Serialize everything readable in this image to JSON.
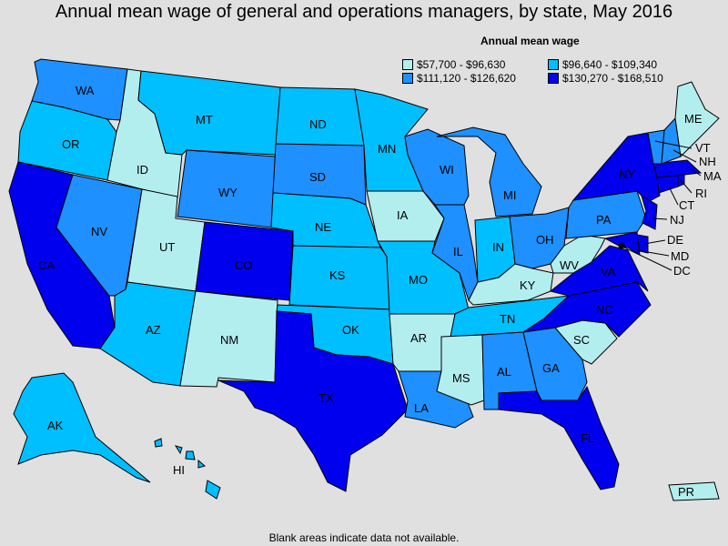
{
  "title": "Annual mean wage of general and operations managers, by state, May 2016",
  "legend": {
    "title": "Annual mean wage",
    "items": [
      {
        "label": "$57,700 - $96,630",
        "color": "#b3eeee"
      },
      {
        "label": "$96,640 - $109,340",
        "color": "#00bfff"
      },
      {
        "label": "$111,120 - $126,620",
        "color": "#1e90ff"
      },
      {
        "label": "$130,270 - $168,510",
        "color": "#0000ee"
      }
    ]
  },
  "footer": "Blank areas indicate data not available.",
  "states": [
    {
      "abbr": "WA",
      "tier": 2
    },
    {
      "abbr": "OR",
      "tier": 1
    },
    {
      "abbr": "CA",
      "tier": 3
    },
    {
      "abbr": "ID",
      "tier": 0
    },
    {
      "abbr": "NV",
      "tier": 2
    },
    {
      "abbr": "UT",
      "tier": 0
    },
    {
      "abbr": "AZ",
      "tier": 1
    },
    {
      "abbr": "MT",
      "tier": 1
    },
    {
      "abbr": "WY",
      "tier": 2
    },
    {
      "abbr": "CO",
      "tier": 3
    },
    {
      "abbr": "NM",
      "tier": 0
    },
    {
      "abbr": "ND",
      "tier": 1
    },
    {
      "abbr": "SD",
      "tier": 2
    },
    {
      "abbr": "NE",
      "tier": 1
    },
    {
      "abbr": "KS",
      "tier": 1
    },
    {
      "abbr": "OK",
      "tier": 1
    },
    {
      "abbr": "TX",
      "tier": 3
    },
    {
      "abbr": "MN",
      "tier": 1
    },
    {
      "abbr": "IA",
      "tier": 0
    },
    {
      "abbr": "MO",
      "tier": 1
    },
    {
      "abbr": "AR",
      "tier": 0
    },
    {
      "abbr": "LA",
      "tier": 2
    },
    {
      "abbr": "WI",
      "tier": 2
    },
    {
      "abbr": "IL",
      "tier": 2
    },
    {
      "abbr": "MI",
      "tier": 2
    },
    {
      "abbr": "IN",
      "tier": 1
    },
    {
      "abbr": "OH",
      "tier": 2
    },
    {
      "abbr": "KY",
      "tier": 0
    },
    {
      "abbr": "TN",
      "tier": 1
    },
    {
      "abbr": "MS",
      "tier": 0
    },
    {
      "abbr": "AL",
      "tier": 2
    },
    {
      "abbr": "GA",
      "tier": 2
    },
    {
      "abbr": "FL",
      "tier": 3
    },
    {
      "abbr": "SC",
      "tier": 0
    },
    {
      "abbr": "NC",
      "tier": 3
    },
    {
      "abbr": "VA",
      "tier": 3
    },
    {
      "abbr": "WV",
      "tier": 0
    },
    {
      "abbr": "PA",
      "tier": 2
    },
    {
      "abbr": "NY",
      "tier": 3
    },
    {
      "abbr": "NJ",
      "tier": 3
    },
    {
      "abbr": "DE",
      "tier": 3
    },
    {
      "abbr": "MD",
      "tier": 3
    },
    {
      "abbr": "DC",
      "tier": 3
    },
    {
      "abbr": "CT",
      "tier": 3
    },
    {
      "abbr": "RI",
      "tier": 3
    },
    {
      "abbr": "MA",
      "tier": 3
    },
    {
      "abbr": "VT",
      "tier": 2
    },
    {
      "abbr": "NH",
      "tier": 2
    },
    {
      "abbr": "ME",
      "tier": 0
    },
    {
      "abbr": "AK",
      "tier": 1
    },
    {
      "abbr": "HI",
      "tier": 1
    },
    {
      "abbr": "PR",
      "tier": 0
    }
  ]
}
